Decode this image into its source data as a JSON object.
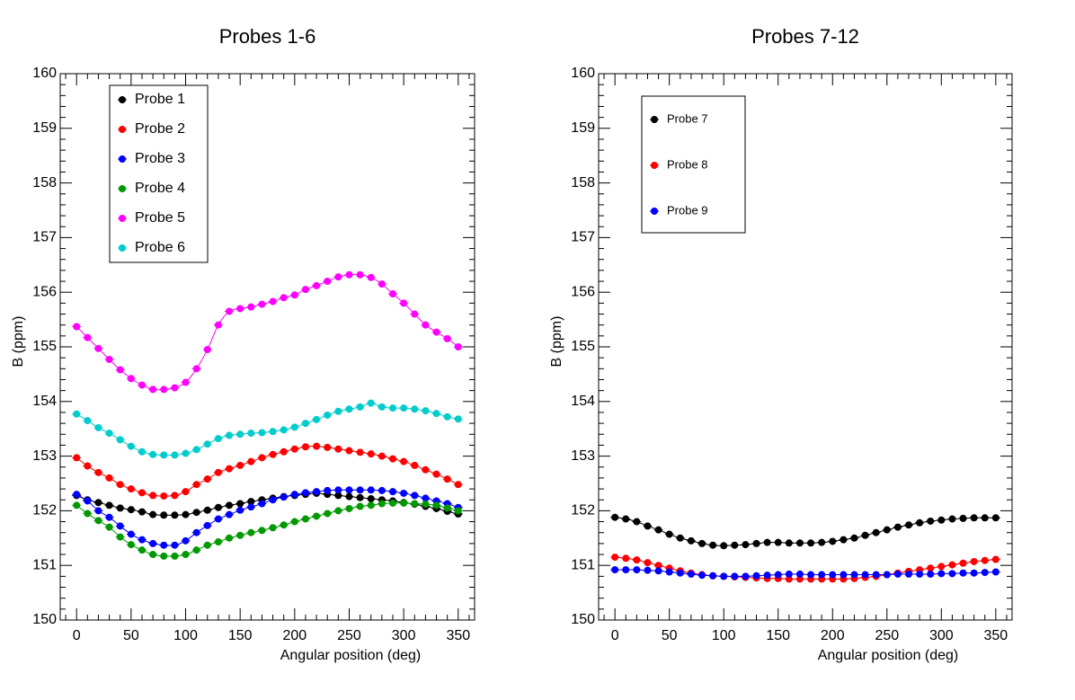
{
  "chart_data": [
    {
      "type": "scatter",
      "title": "Probes 1-6",
      "xlabel": "Angular position (deg)",
      "ylabel": "B (ppm)",
      "xlim": [
        -15,
        365
      ],
      "ylim": [
        150,
        160
      ],
      "x_ticks": [
        0,
        50,
        100,
        150,
        200,
        250,
        300,
        350
      ],
      "y_ticks": [
        150,
        151,
        152,
        153,
        154,
        155,
        156,
        157,
        158,
        159,
        160
      ],
      "grid": false,
      "legend": "top-left",
      "x": [
        0,
        10,
        20,
        30,
        40,
        50,
        60,
        70,
        80,
        90,
        100,
        110,
        120,
        130,
        140,
        150,
        160,
        170,
        180,
        190,
        200,
        210,
        220,
        230,
        240,
        250,
        260,
        270,
        280,
        290,
        300,
        310,
        320,
        330,
        340,
        350
      ],
      "series": [
        {
          "name": "Probe 1",
          "color": "#000000",
          "values": [
            152.28,
            152.2,
            152.15,
            152.1,
            152.05,
            152.02,
            151.98,
            151.93,
            151.92,
            151.92,
            151.93,
            151.97,
            152.01,
            152.06,
            152.1,
            152.13,
            152.17,
            152.2,
            152.23,
            152.26,
            152.28,
            152.3,
            152.32,
            152.3,
            152.28,
            152.26,
            152.24,
            152.22,
            152.2,
            152.18,
            152.15,
            152.12,
            152.08,
            152.04,
            151.99,
            151.94
          ]
        },
        {
          "name": "Probe 2",
          "color": "#ff0000",
          "values": [
            152.97,
            152.82,
            152.7,
            152.6,
            152.48,
            152.4,
            152.33,
            152.28,
            152.27,
            152.28,
            152.35,
            152.48,
            152.58,
            152.7,
            152.77,
            152.83,
            152.9,
            152.97,
            153.03,
            153.08,
            153.13,
            153.17,
            153.18,
            153.16,
            153.13,
            153.1,
            153.07,
            153.04,
            153.0,
            152.95,
            152.9,
            152.83,
            152.75,
            152.67,
            152.58,
            152.48
          ]
        },
        {
          "name": "Probe 3",
          "color": "#0000ff",
          "values": [
            152.3,
            152.18,
            152.0,
            151.88,
            151.72,
            151.57,
            151.47,
            151.4,
            151.37,
            151.37,
            151.45,
            151.6,
            151.73,
            151.85,
            151.93,
            152.01,
            152.07,
            152.13,
            152.2,
            152.25,
            152.3,
            152.33,
            152.35,
            152.37,
            152.38,
            152.38,
            152.38,
            152.38,
            152.37,
            152.35,
            152.32,
            152.28,
            152.23,
            152.18,
            152.13,
            152.06
          ]
        },
        {
          "name": "Probe 4",
          "color": "#009900",
          "values": [
            152.1,
            151.95,
            151.82,
            151.7,
            151.52,
            151.38,
            151.28,
            151.2,
            151.17,
            151.17,
            151.2,
            151.28,
            151.37,
            151.43,
            151.5,
            151.55,
            151.6,
            151.64,
            151.69,
            151.74,
            151.8,
            151.85,
            151.9,
            151.95,
            152.0,
            152.04,
            152.08,
            152.1,
            152.13,
            152.14,
            152.14,
            152.13,
            152.12,
            152.1,
            152.05,
            152.0
          ]
        },
        {
          "name": "Probe 5",
          "color": "#ff00ff",
          "values": [
            155.37,
            155.17,
            154.97,
            154.77,
            154.58,
            154.42,
            154.3,
            154.22,
            154.22,
            154.25,
            154.35,
            154.6,
            154.95,
            155.4,
            155.65,
            155.7,
            155.73,
            155.78,
            155.83,
            155.9,
            155.95,
            156.05,
            156.12,
            156.2,
            156.28,
            156.32,
            156.32,
            156.27,
            156.15,
            155.97,
            155.8,
            155.6,
            155.4,
            155.27,
            155.15,
            155.0
          ]
        },
        {
          "name": "Probe 6",
          "color": "#00cccc",
          "values": [
            153.77,
            153.65,
            153.52,
            153.42,
            153.3,
            153.18,
            153.08,
            153.03,
            153.02,
            153.02,
            153.05,
            153.12,
            153.22,
            153.32,
            153.38,
            153.4,
            153.42,
            153.43,
            153.45,
            153.48,
            153.53,
            153.6,
            153.67,
            153.75,
            153.82,
            153.86,
            153.9,
            153.97,
            153.9,
            153.88,
            153.88,
            153.86,
            153.83,
            153.78,
            153.72,
            153.68
          ]
        }
      ]
    },
    {
      "type": "scatter",
      "title": "Probes 7-12",
      "xlabel": "Angular position (deg)",
      "ylabel": "B (ppm)",
      "xlim": [
        -15,
        365
      ],
      "ylim": [
        150,
        160
      ],
      "x_ticks": [
        0,
        50,
        100,
        150,
        200,
        250,
        300,
        350
      ],
      "y_ticks": [
        150,
        151,
        152,
        153,
        154,
        155,
        156,
        157,
        158,
        159,
        160
      ],
      "grid": false,
      "legend": "top-left",
      "x": [
        0,
        10,
        20,
        30,
        40,
        50,
        60,
        70,
        80,
        90,
        100,
        110,
        120,
        130,
        140,
        150,
        160,
        170,
        180,
        190,
        200,
        210,
        220,
        230,
        240,
        250,
        260,
        270,
        280,
        290,
        300,
        310,
        320,
        330,
        340,
        350
      ],
      "series": [
        {
          "name": "Probe 7",
          "color": "#000000",
          "values": [
            151.88,
            151.85,
            151.8,
            151.72,
            151.65,
            151.57,
            151.5,
            151.45,
            151.4,
            151.37,
            151.36,
            151.37,
            151.38,
            151.4,
            151.42,
            151.42,
            151.41,
            151.41,
            151.41,
            151.42,
            151.44,
            151.47,
            151.5,
            151.55,
            151.6,
            151.65,
            151.7,
            151.74,
            151.78,
            151.81,
            151.83,
            151.85,
            151.86,
            151.87,
            151.87,
            151.87
          ]
        },
        {
          "name": "Probe 8",
          "color": "#ff0000",
          "values": [
            151.15,
            151.13,
            151.1,
            151.05,
            151.0,
            150.95,
            150.9,
            150.86,
            150.83,
            150.81,
            150.8,
            150.79,
            150.78,
            150.77,
            150.76,
            150.76,
            150.75,
            150.75,
            150.75,
            150.75,
            150.75,
            150.75,
            150.76,
            150.78,
            150.8,
            150.83,
            150.86,
            150.89,
            150.92,
            150.95,
            150.98,
            151.01,
            151.04,
            151.07,
            151.09,
            151.11
          ]
        },
        {
          "name": "Probe 9",
          "color": "#0000ff",
          "values": [
            150.92,
            150.92,
            150.92,
            150.91,
            150.9,
            150.88,
            150.86,
            150.84,
            150.82,
            150.81,
            150.8,
            150.8,
            150.8,
            150.81,
            150.82,
            150.83,
            150.84,
            150.84,
            150.83,
            150.83,
            150.83,
            150.83,
            150.83,
            150.83,
            150.83,
            150.83,
            150.84,
            150.84,
            150.84,
            150.84,
            150.85,
            150.85,
            150.86,
            150.86,
            150.87,
            150.88
          ]
        }
      ]
    }
  ]
}
